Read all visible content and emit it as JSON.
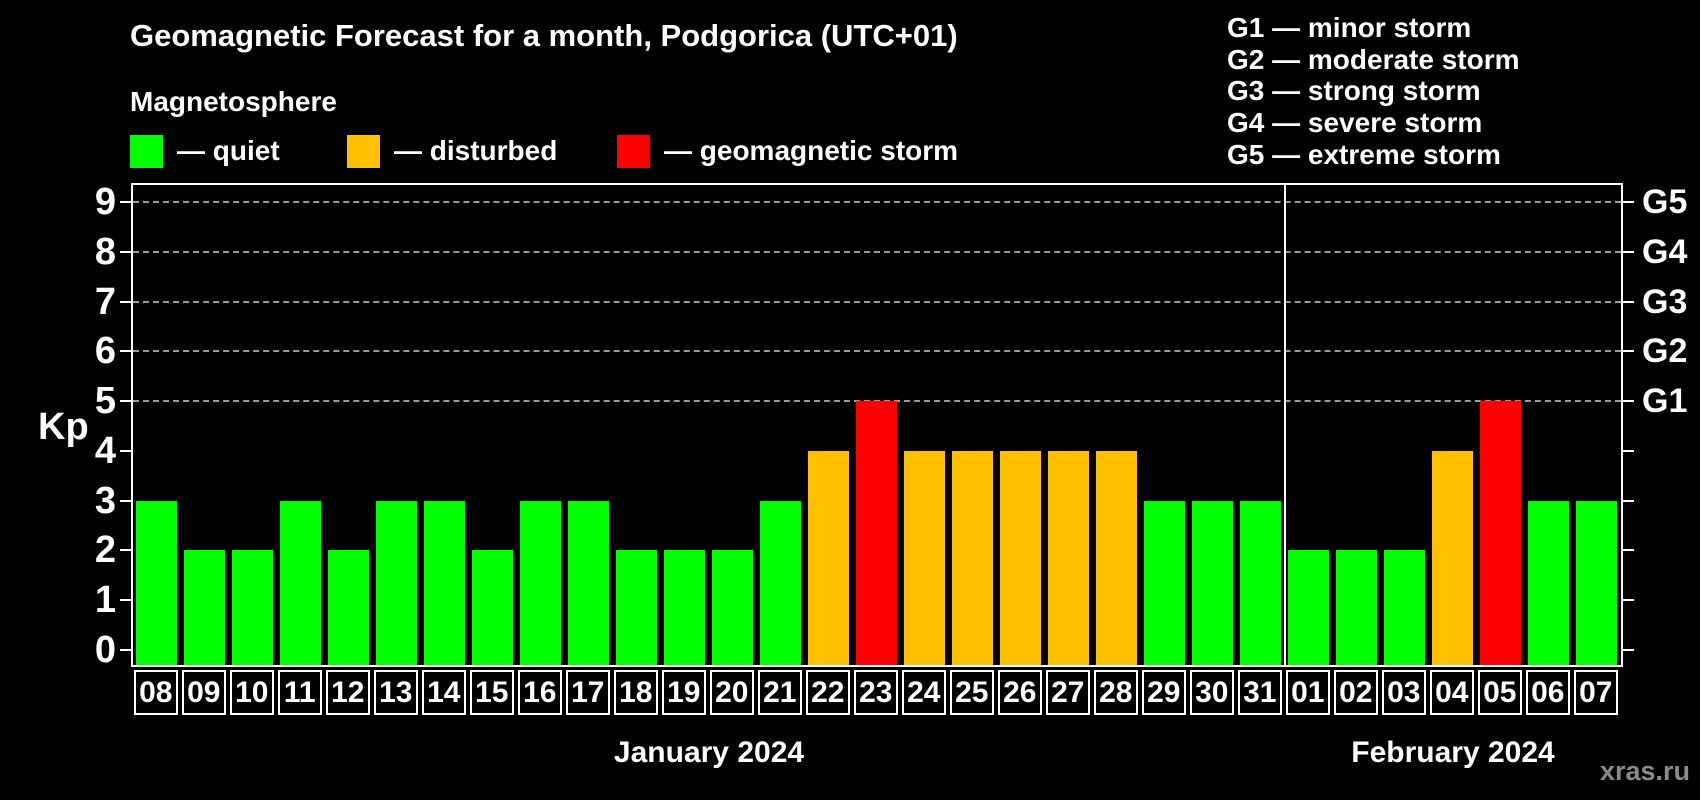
{
  "title": "Geomagnetic Forecast for a month, Podgorica (UTC+01)",
  "subtitle": "Magnetosphere",
  "watermark": "xras.ru",
  "legend": {
    "items": [
      {
        "name": "quiet",
        "label": "— quiet",
        "status": "quiet"
      },
      {
        "name": "disturbed",
        "label": "— disturbed",
        "status": "disturbed"
      },
      {
        "name": "storm",
        "label": "— geomagnetic storm",
        "status": "storm"
      }
    ]
  },
  "g_scale_legend": [
    "G1 — minor storm",
    "G2 — moderate storm",
    "G3 — strong storm",
    "G4 — severe storm",
    "G5 — extreme storm"
  ],
  "chart_data": {
    "type": "bar",
    "ylabel": "Kp",
    "ylim": [
      0,
      9
    ],
    "y_ticks": [
      0,
      1,
      2,
      3,
      4,
      5,
      6,
      7,
      8,
      9
    ],
    "grid_kp_levels": [
      5,
      6,
      7,
      8,
      9
    ],
    "right_axis": [
      {
        "label": "G1",
        "kp": 5
      },
      {
        "label": "G2",
        "kp": 6
      },
      {
        "label": "G3",
        "kp": 7
      },
      {
        "label": "G4",
        "kp": 8
      },
      {
        "label": "G5",
        "kp": 9
      }
    ],
    "status_colors": {
      "quiet": "#00ff00",
      "disturbed": "#ffc000",
      "storm": "#ff0000"
    },
    "months": [
      {
        "label": "January 2024",
        "days": [
          {
            "day": "08",
            "kp": 3,
            "status": "quiet"
          },
          {
            "day": "09",
            "kp": 2,
            "status": "quiet"
          },
          {
            "day": "10",
            "kp": 2,
            "status": "quiet"
          },
          {
            "day": "11",
            "kp": 3,
            "status": "quiet"
          },
          {
            "day": "12",
            "kp": 2,
            "status": "quiet"
          },
          {
            "day": "13",
            "kp": 3,
            "status": "quiet"
          },
          {
            "day": "14",
            "kp": 3,
            "status": "quiet"
          },
          {
            "day": "15",
            "kp": 2,
            "status": "quiet"
          },
          {
            "day": "16",
            "kp": 3,
            "status": "quiet"
          },
          {
            "day": "17",
            "kp": 3,
            "status": "quiet"
          },
          {
            "day": "18",
            "kp": 2,
            "status": "quiet"
          },
          {
            "day": "19",
            "kp": 2,
            "status": "quiet"
          },
          {
            "day": "20",
            "kp": 2,
            "status": "quiet"
          },
          {
            "day": "21",
            "kp": 3,
            "status": "quiet"
          },
          {
            "day": "22",
            "kp": 4,
            "status": "disturbed"
          },
          {
            "day": "23",
            "kp": 5,
            "status": "storm"
          },
          {
            "day": "24",
            "kp": 4,
            "status": "disturbed"
          },
          {
            "day": "25",
            "kp": 4,
            "status": "disturbed"
          },
          {
            "day": "26",
            "kp": 4,
            "status": "disturbed"
          },
          {
            "day": "27",
            "kp": 4,
            "status": "disturbed"
          },
          {
            "day": "28",
            "kp": 4,
            "status": "disturbed"
          },
          {
            "day": "29",
            "kp": 3,
            "status": "quiet"
          },
          {
            "day": "30",
            "kp": 3,
            "status": "quiet"
          },
          {
            "day": "31",
            "kp": 3,
            "status": "quiet"
          }
        ]
      },
      {
        "label": "February 2024",
        "days": [
          {
            "day": "01",
            "kp": 2,
            "status": "quiet"
          },
          {
            "day": "02",
            "kp": 2,
            "status": "quiet"
          },
          {
            "day": "03",
            "kp": 2,
            "status": "quiet"
          },
          {
            "day": "04",
            "kp": 4,
            "status": "disturbed"
          },
          {
            "day": "05",
            "kp": 5,
            "status": "storm"
          },
          {
            "day": "06",
            "kp": 3,
            "status": "quiet"
          },
          {
            "day": "07",
            "kp": 3,
            "status": "quiet"
          }
        ]
      }
    ]
  }
}
